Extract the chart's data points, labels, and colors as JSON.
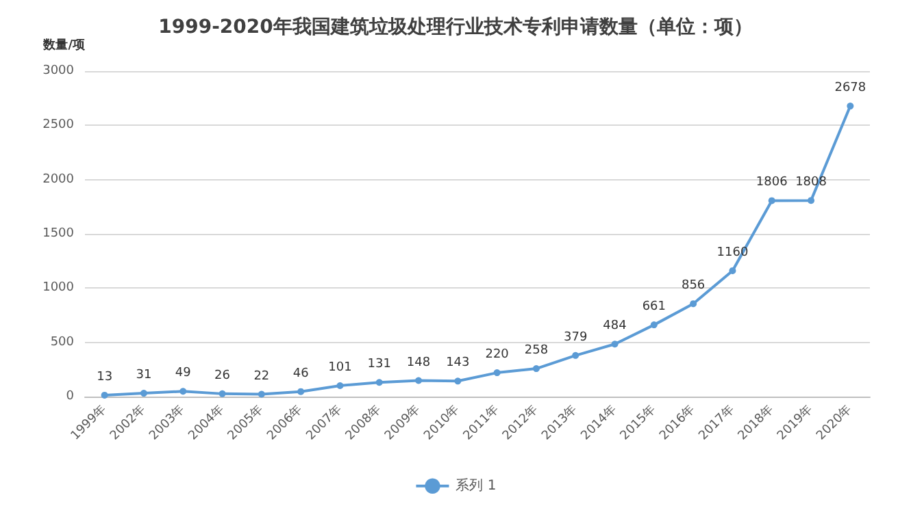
{
  "chart_data": {
    "type": "line",
    "title": "1999-2020年我国建筑垃圾处理行业技术专利申请数量（单位：项）",
    "ylabel": "数量/项",
    "categories": [
      "1999年",
      "2002年",
      "2003年",
      "2004年",
      "2005年",
      "2006年",
      "2007年",
      "2008年",
      "2009年",
      "2010年",
      "2011年",
      "2012年",
      "2013年",
      "2014年",
      "2015年",
      "2016年",
      "2017年",
      "2018年",
      "2019年",
      "2020年"
    ],
    "series": [
      {
        "name": "系列 1",
        "color": "#5b9bd5",
        "values": [
          13,
          31,
          49,
          26,
          22,
          46,
          101,
          131,
          148,
          143,
          220,
          258,
          379,
          484,
          661,
          856,
          1160,
          1806,
          1808,
          2678
        ]
      }
    ],
    "ylim": [
      0,
      3000
    ],
    "yticks": [
      0,
      500,
      1000,
      1500,
      2000,
      2500,
      3000
    ],
    "grid": "y",
    "legend": "bottom",
    "marker": "circle",
    "data_labels": true
  }
}
